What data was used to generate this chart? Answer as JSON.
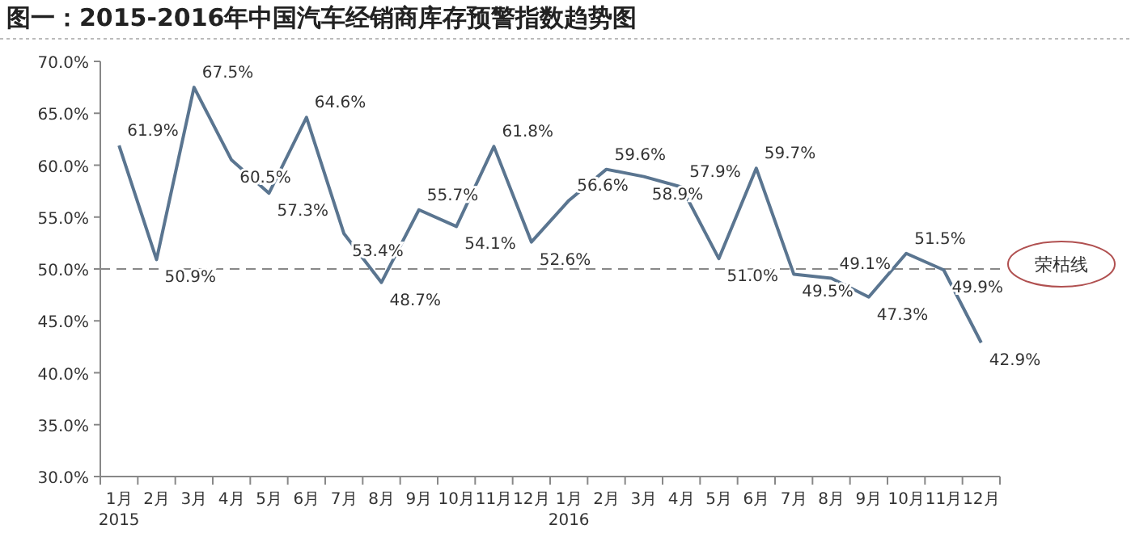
{
  "chart_data": {
    "type": "line",
    "title": "图一：2015-2016年中国汽车经销商库存预警指数趋势图",
    "categories": [
      "1月",
      "2月",
      "3月",
      "4月",
      "5月",
      "6月",
      "7月",
      "8月",
      "9月",
      "10月",
      "11月",
      "12月",
      "1月",
      "2月",
      "3月",
      "4月",
      "5月",
      "6月",
      "7月",
      "8月",
      "9月",
      "10月",
      "11月",
      "12月"
    ],
    "series": [
      {
        "color": "#5a7590",
        "values": [
          61.9,
          50.9,
          67.5,
          60.5,
          57.3,
          64.6,
          53.4,
          48.7,
          55.7,
          54.1,
          61.8,
          52.6,
          56.6,
          59.6,
          58.9,
          57.9,
          51.0,
          59.7,
          49.5,
          49.1,
          47.3,
          51.5,
          49.9,
          42.9
        ]
      }
    ],
    "value_labels": [
      "61.9%",
      "50.9%",
      "67.5%",
      "60.5%",
      "57.3%",
      "64.6%",
      "53.4%",
      "48.7%",
      "55.7%",
      "54.1%",
      "61.8%",
      "52.6%",
      "56.6%",
      "59.6%",
      "58.9%",
      "57.9%",
      "51.0%",
      "59.7%",
      "49.5%",
      "49.1%",
      "47.3%",
      "51.5%",
      "49.9%",
      "42.9%"
    ],
    "ylim": [
      30,
      70
    ],
    "yticks": [
      {
        "value": 30,
        "label": "30.0%"
      },
      {
        "value": 35,
        "label": "35.0%"
      },
      {
        "value": 40,
        "label": "40.0%"
      },
      {
        "value": 45,
        "label": "45.0%"
      },
      {
        "value": 50,
        "label": "50.0%"
      },
      {
        "value": 55,
        "label": "55.0%"
      },
      {
        "value": 60,
        "label": "60.0%"
      },
      {
        "value": 65,
        "label": "65.0%"
      },
      {
        "value": 70,
        "label": "70.0%"
      }
    ],
    "ref_lines": [
      {
        "axis": "y",
        "value": 50,
        "label": "荣枯线",
        "color": "#888888",
        "line_style": "dashed"
      }
    ],
    "annotations": [
      "2015",
      "2016"
    ],
    "grid": false,
    "marker": "none",
    "line_style": "solid"
  }
}
